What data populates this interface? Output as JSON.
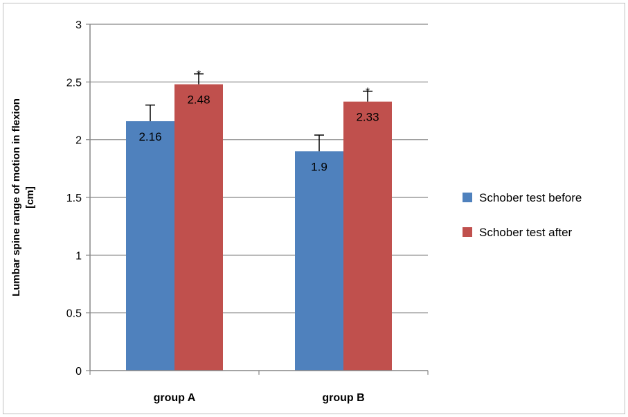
{
  "chart_data": {
    "type": "bar",
    "title": "",
    "xlabel": "",
    "ylabel_lines": [
      "Lumbar spine range of motion in flexion",
      "[cm]"
    ],
    "categories": [
      "group A",
      "group B"
    ],
    "series": [
      {
        "name": "Schober test before",
        "values": [
          2.16,
          1.9
        ],
        "errors": [
          0.14,
          0.14
        ],
        "labels": [
          "2.16",
          "1.9"
        ],
        "sig": [
          "",
          ""
        ],
        "color": "#4f81bd"
      },
      {
        "name": "Schober test after",
        "values": [
          2.48,
          2.33
        ],
        "errors": [
          0.09,
          0.09
        ],
        "labels": [
          "2.48",
          "2.33"
        ],
        "sig": [
          "*",
          "*"
        ],
        "color": "#c0504d"
      }
    ],
    "ylim": [
      0,
      3
    ],
    "yticks": [
      0,
      0.5,
      1,
      1.5,
      2,
      2.5,
      3
    ],
    "ytick_labels": [
      "0",
      "0.5",
      "1",
      "1.5",
      "2",
      "2.5",
      "3"
    ],
    "grid": true,
    "legend_position": "right"
  }
}
